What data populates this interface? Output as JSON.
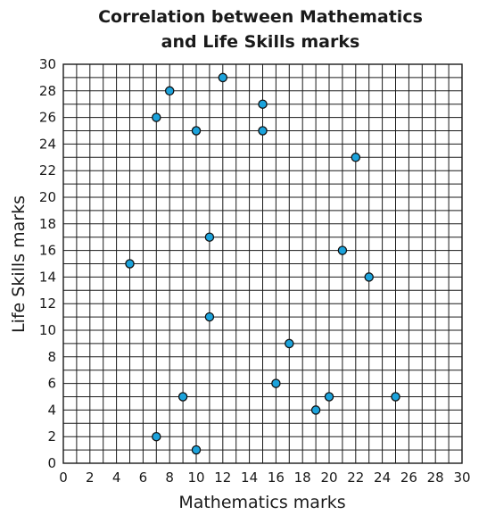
{
  "chart_data": {
    "type": "scatter",
    "title_lines": [
      "Correlation between Mathematics",
      "and Life Skills marks"
    ],
    "xlabel": "Mathematics marks",
    "ylabel": "Life Skills marks",
    "xlim": [
      0,
      30
    ],
    "ylim": [
      0,
      30
    ],
    "x_ticks": [
      "0",
      "2",
      "4",
      "6",
      "8",
      "10",
      "12",
      "14",
      "16",
      "18",
      "20",
      "22",
      "24",
      "26",
      "28",
      "30"
    ],
    "y_ticks": [
      "0",
      "2",
      "4",
      "6",
      "8",
      "10",
      "12",
      "14",
      "16",
      "18",
      "20",
      "22",
      "24",
      "26",
      "28",
      "30"
    ],
    "grid": true,
    "point_color": "#1ca3dc",
    "points": [
      {
        "x": 5,
        "y": 15
      },
      {
        "x": 7,
        "y": 26
      },
      {
        "x": 7,
        "y": 2
      },
      {
        "x": 8,
        "y": 28
      },
      {
        "x": 9,
        "y": 5
      },
      {
        "x": 10,
        "y": 25
      },
      {
        "x": 10,
        "y": 1
      },
      {
        "x": 11,
        "y": 17
      },
      {
        "x": 11,
        "y": 11
      },
      {
        "x": 12,
        "y": 29
      },
      {
        "x": 15,
        "y": 27
      },
      {
        "x": 15,
        "y": 25
      },
      {
        "x": 16,
        "y": 6
      },
      {
        "x": 17,
        "y": 9
      },
      {
        "x": 19,
        "y": 4
      },
      {
        "x": 20,
        "y": 5
      },
      {
        "x": 21,
        "y": 16
      },
      {
        "x": 22,
        "y": 23
      },
      {
        "x": 23,
        "y": 14
      },
      {
        "x": 25,
        "y": 5
      }
    ]
  }
}
